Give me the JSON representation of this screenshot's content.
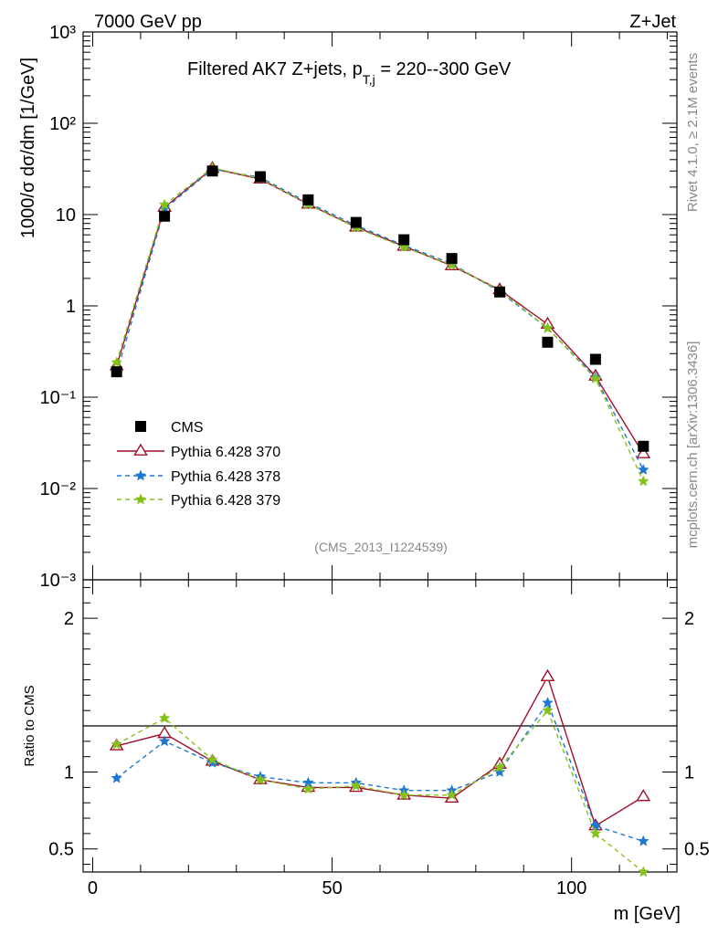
{
  "header": {
    "energy_label": "7000 GeV pp",
    "process_label": "Z+Jet",
    "title_main": "Filtered AK7 Z+jets, p",
    "title_sub": "T,j",
    "title_tail": " = 220--300 GeV",
    "side_top": "Rivet 4.1.0, ≥ 2.1M events",
    "side_bottom": "mcplots.cern.ch [arXiv:1306.3436]",
    "watermark": "(CMS_2013_I1224539)"
  },
  "colors": {
    "cms": "#000000",
    "p370": "#a0102a",
    "p378": "#1f77d4",
    "p379": "#84c21a"
  },
  "chart_data": [
    {
      "type": "line",
      "panel": "main",
      "ylabel": "1000/σ  dσ/dm [1/GeV]",
      "yscale": "log",
      "ylim": [
        0.001,
        1000
      ],
      "xlim": [
        -2,
        122
      ],
      "y_tick_labels": [
        "10⁻³",
        "10⁻²",
        "10⁻¹",
        "1",
        "10",
        "10²",
        "10³"
      ],
      "legend_position": "middle-left",
      "x": [
        5,
        15,
        25,
        35,
        45,
        55,
        65,
        75,
        85,
        95,
        105,
        115
      ],
      "series": [
        {
          "name": "CMS",
          "style": "markers",
          "values": [
            0.19,
            9.6,
            30,
            26,
            14.5,
            8.2,
            5.3,
            3.3,
            1.42,
            0.4,
            0.26,
            0.029
          ]
        },
        {
          "name": "Pythia 6.428 370",
          "style": "solid-triangle",
          "values": [
            0.22,
            12,
            32,
            24.5,
            13,
            7.3,
            4.5,
            2.75,
            1.5,
            0.63,
            0.17,
            0.024
          ]
        },
        {
          "name": "Pythia 6.428 378",
          "style": "dashed-star",
          "values": [
            0.185,
            11.5,
            31.5,
            25.5,
            13.5,
            7.6,
            4.6,
            2.9,
            1.43,
            0.57,
            0.165,
            0.016
          ]
        },
        {
          "name": "Pythia 6.428 379",
          "style": "dashed-star",
          "values": [
            0.24,
            12.8,
            32.5,
            24.8,
            12.9,
            7.2,
            4.4,
            2.8,
            1.48,
            0.57,
            0.16,
            0.012
          ]
        }
      ]
    },
    {
      "type": "line",
      "panel": "ratio",
      "ylabel": "Ratio to CMS",
      "xlabel": "m [GeV]",
      "ylim": [
        0.35,
        2.25
      ],
      "xlim": [
        -2,
        122
      ],
      "y_ticks": [
        0.5,
        1,
        2
      ],
      "y_tick_labels": [
        "0.5",
        "1",
        "2"
      ],
      "x_ticks": [
        0,
        50,
        100
      ],
      "x_tick_labels": [
        "0",
        "50",
        "100"
      ],
      "x": [
        5,
        15,
        25,
        35,
        45,
        55,
        65,
        75,
        85,
        95,
        105,
        115
      ],
      "series": [
        {
          "name": "Pythia 6.428 370",
          "values": [
            1.17,
            1.25,
            1.07,
            0.95,
            0.9,
            0.9,
            0.85,
            0.83,
            1.05,
            1.62,
            0.65,
            0.84
          ]
        },
        {
          "name": "Pythia 6.428 378",
          "values": [
            0.96,
            1.2,
            1.06,
            0.97,
            0.93,
            0.93,
            0.88,
            0.88,
            1.0,
            1.45,
            0.65,
            0.55
          ]
        },
        {
          "name": "Pythia 6.428 379",
          "values": [
            1.18,
            1.35,
            1.08,
            0.95,
            0.89,
            0.91,
            0.85,
            0.85,
            1.03,
            1.4,
            0.6,
            0.35
          ]
        }
      ]
    }
  ]
}
